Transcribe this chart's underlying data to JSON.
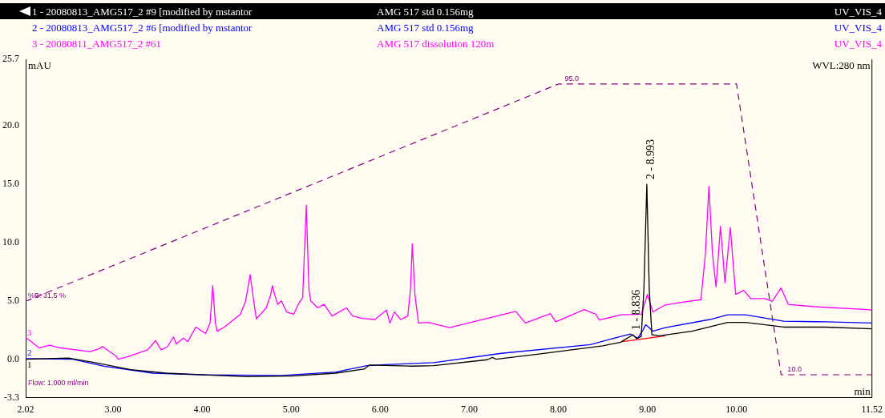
{
  "chart_data": {
    "type": "line",
    "xlabel": "min",
    "ylabel": "mAU",
    "legend": "top",
    "marker": "none",
    "grid": false,
    "xlim": [
      2.02,
      11.52
    ],
    "xticks": [
      {
        "value": 2.02,
        "label": "2.02"
      },
      {
        "value": 3,
        "label": "3.00"
      },
      {
        "value": 4,
        "label": "4.00"
      },
      {
        "value": 5,
        "label": "5.00"
      },
      {
        "value": 6,
        "label": "6.00"
      },
      {
        "value": 7,
        "label": "7.00"
      },
      {
        "value": 8,
        "label": "8.00"
      },
      {
        "value": 9,
        "label": "9.00"
      },
      {
        "value": 10,
        "label": "10.00"
      },
      {
        "value": 11.52,
        "label": "11.52"
      }
    ],
    "ylim": [
      -3.3,
      25.7
    ],
    "yticks": [
      {
        "value": -3.3,
        "label": "-3.3"
      },
      {
        "value": 0,
        "label": "0.0"
      },
      {
        "value": 5,
        "label": "5.0"
      },
      {
        "value": 10,
        "label": "10.0"
      },
      {
        "value": 15,
        "label": "15.0"
      },
      {
        "value": 20,
        "label": "20.0"
      },
      {
        "value": 25.7,
        "label": "25.7"
      }
    ],
    "y2lim": [
      3.3,
      102.2
    ],
    "series": [
      {
        "name": "1 - 20080813_AMG517_2 #9 [modified by mstantor",
        "color": "#000000",
        "x": [
          2.02,
          2.5,
          2.8,
          3.2,
          3.6,
          4.5,
          5.0,
          5.5,
          5.82,
          5.88,
          6.36,
          6.6,
          7.2,
          7.26,
          7.3,
          7.8,
          8.2,
          8.5,
          8.7,
          8.836,
          8.88,
          8.93,
          8.96,
          8.993,
          9.02,
          9.05,
          9.13,
          9.5,
          9.9,
          10.1,
          10.53,
          11.0,
          11.52
        ],
        "values": [
          0.0,
          0.1,
          -0.3,
          -0.9,
          -1.2,
          -1.5,
          -1.45,
          -1.2,
          -0.85,
          -0.5,
          -0.6,
          -0.55,
          -0.05,
          0.15,
          0.0,
          0.45,
          0.85,
          1.15,
          1.45,
          2.1,
          1.75,
          1.95,
          6.0,
          15.0,
          6.0,
          2.1,
          2.0,
          2.4,
          3.15,
          3.15,
          2.75,
          2.75,
          2.6
        ]
      },
      {
        "name": "2 - 20080813_AMG517_2 #6 [modified by mstantor",
        "color": "#0000ff",
        "x": [
          2.02,
          2.55,
          2.9,
          3.45,
          4.0,
          4.9,
          5.5,
          5.85,
          6.1,
          6.6,
          7.36,
          8.36,
          8.7,
          8.81,
          8.89,
          8.95,
          8.98,
          9.02,
          9.06,
          9.2,
          9.7,
          9.9,
          10.1,
          10.53,
          11.0,
          11.52
        ],
        "values": [
          0.05,
          0.0,
          -0.6,
          -1.2,
          -1.35,
          -1.4,
          -1.1,
          -0.55,
          -0.45,
          -0.3,
          0.5,
          1.25,
          1.95,
          2.15,
          1.8,
          2.5,
          2.95,
          2.7,
          2.4,
          2.7,
          3.4,
          3.8,
          3.8,
          3.25,
          3.2,
          3.1
        ]
      },
      {
        "name": "3 - 20080811_AMG517_2 #61",
        "color": "#ff00ff",
        "x": [
          2.02,
          2.04,
          2.17,
          2.29,
          2.4,
          2.58,
          2.74,
          2.85,
          2.88,
          3.03,
          3.06,
          3.16,
          3.39,
          3.48,
          3.54,
          3.61,
          3.68,
          3.71,
          3.79,
          3.84,
          3.93,
          4.04,
          4.09,
          4.12,
          4.15,
          4.17,
          4.25,
          4.43,
          4.49,
          4.54,
          4.58,
          4.61,
          4.72,
          4.77,
          4.79,
          4.82,
          4.85,
          4.89,
          4.95,
          5.03,
          5.08,
          5.13,
          5.17,
          5.2,
          5.22,
          5.3,
          5.37,
          5.46,
          5.62,
          5.69,
          5.8,
          5.94,
          6.07,
          6.11,
          6.16,
          6.23,
          6.31,
          6.34,
          6.36,
          6.39,
          6.43,
          6.54,
          6.78,
          7.52,
          7.63,
          7.91,
          7.97,
          8.29,
          8.42,
          8.46,
          8.7,
          8.93,
          9.0,
          9.06,
          9.2,
          9.36,
          9.6,
          9.65,
          9.69,
          9.73,
          9.77,
          9.82,
          9.87,
          9.93,
          9.99,
          10.08,
          10.16,
          10.32,
          10.4,
          10.5,
          10.58,
          10.87,
          11.47,
          11.52
        ],
        "values": [
          1.8,
          1.75,
          0.98,
          1.2,
          0.98,
          0.8,
          0.65,
          0.9,
          1.1,
          0.3,
          0.0,
          0.2,
          0.8,
          1.6,
          0.8,
          1.05,
          1.9,
          1.3,
          1.8,
          1.5,
          2.75,
          2.2,
          3.1,
          6.3,
          3.1,
          2.4,
          2.75,
          3.85,
          5.0,
          7.25,
          5.0,
          3.45,
          4.4,
          5.5,
          6.3,
          5.4,
          4.7,
          5.0,
          4.05,
          3.85,
          4.7,
          5.3,
          13.2,
          6.0,
          5.0,
          4.4,
          4.7,
          3.7,
          4.4,
          3.7,
          3.5,
          3.4,
          4.2,
          3.1,
          4.05,
          3.4,
          3.7,
          6.0,
          9.9,
          5.5,
          3.1,
          3.15,
          2.7,
          4.1,
          3.1,
          3.9,
          3.2,
          4.25,
          3.85,
          3.35,
          3.8,
          3.85,
          5.55,
          4.05,
          4.65,
          4.85,
          5.1,
          9.0,
          14.8,
          9.0,
          6.2,
          11.4,
          6.55,
          11.3,
          5.55,
          5.9,
          5.2,
          5.2,
          4.95,
          6.1,
          4.7,
          4.5,
          4.25,
          4.2
        ]
      },
      {
        "color": "#ff0000",
        "x": [
          8.72,
          9.2
        ],
        "values": [
          1.5,
          2.0
        ]
      },
      {
        "color": "#800080",
        "axis": "y2",
        "line_style": "dashed",
        "x": [
          2.02,
          8.0,
          10.0,
          10.5,
          11.52
        ],
        "values": [
          31.5,
          95,
          95,
          10,
          10
        ],
        "value_labels": [
          "%B: 31.5 %",
          "95.0",
          null,
          "10.0",
          null
        ]
      }
    ],
    "annotations": [
      "AMG 517 std 0.156mg",
      "UV_VIS_4",
      "AMG 517 std 0.156mg",
      "UV_VIS_4",
      "AMG 517 dissolution 120m",
      "UV_VIS_4",
      "WVL:280 nm",
      "Flow: 1.000 ml/min",
      {
        "text": "1 - 8.836",
        "x": 8.836,
        "y": 2.1
      },
      {
        "text": "2 - 8.993",
        "x": 8.993,
        "y": 15.0
      },
      {
        "text": "1",
        "x": 2.02,
        "y": 0.0
      },
      {
        "text": "2",
        "x": 2.02,
        "y": 0.05
      },
      {
        "text": "3",
        "x": 2.02,
        "y": 1.8
      }
    ]
  }
}
